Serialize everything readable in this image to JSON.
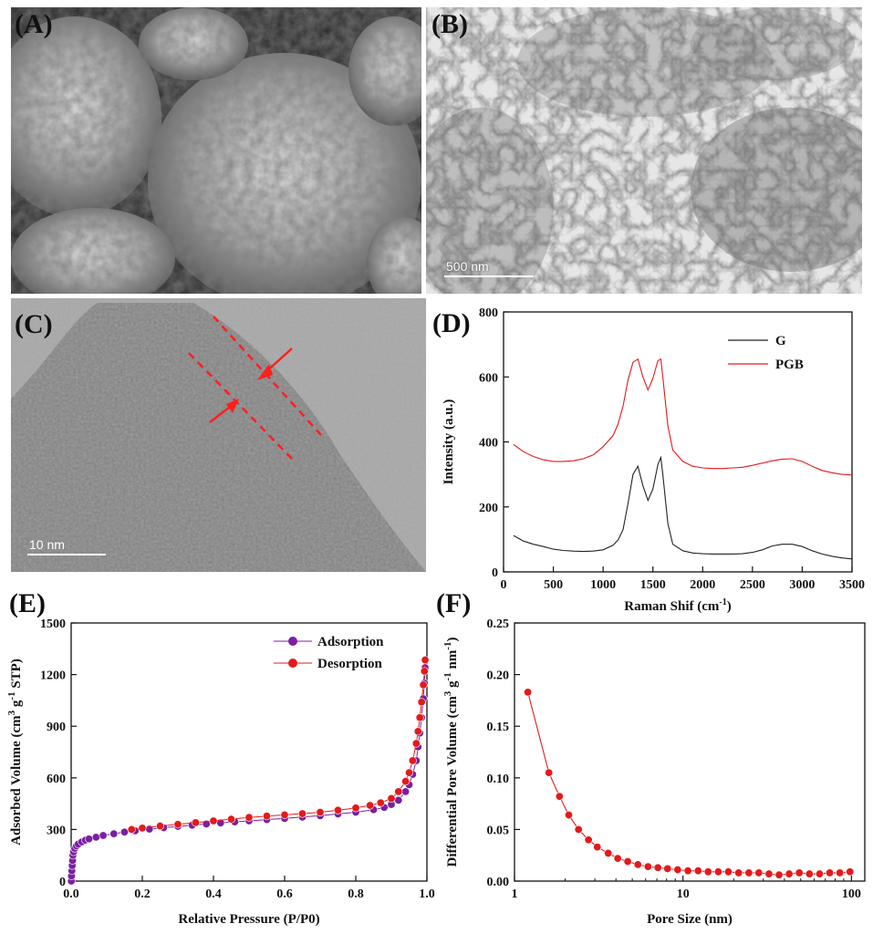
{
  "panels": {
    "A": {
      "label": "(A)"
    },
    "B": {
      "label": "(B)",
      "scalebar": "500 nm"
    },
    "C": {
      "label": "(C)",
      "scalebar": "10 nm"
    },
    "D": {
      "label": "(D)"
    },
    "E": {
      "label": "(E)"
    },
    "F": {
      "label": "(F)"
    }
  },
  "chart_data": [
    {
      "id": "D",
      "type": "line",
      "title": "",
      "xlabel": "Raman Shif (cm-1)",
      "xlabel_text": "Raman Shif (cm",
      "xlabel_sup": "-1",
      "xlabel_end": ")",
      "ylabel": "Intensity (a.u.)",
      "xlim": [
        0,
        3500
      ],
      "ylim": [
        0,
        800
      ],
      "xticks": [
        "0",
        "500",
        "1000",
        "1500",
        "2000",
        "2500",
        "3000",
        "3500"
      ],
      "yticks": [
        "0",
        "200",
        "400",
        "600",
        "800"
      ],
      "legend_position": "top-right",
      "series": [
        {
          "name": "G",
          "color": "#222222",
          "x": [
            100,
            200,
            300,
            400,
            500,
            600,
            700,
            800,
            900,
            1000,
            1100,
            1150,
            1200,
            1250,
            1300,
            1350,
            1400,
            1450,
            1500,
            1550,
            1580,
            1600,
            1650,
            1700,
            1800,
            1900,
            2000,
            2100,
            2200,
            2300,
            2400,
            2500,
            2600,
            2700,
            2800,
            2900,
            3000,
            3100,
            3200,
            3300,
            3400,
            3500
          ],
          "y": [
            112,
            95,
            85,
            78,
            70,
            66,
            64,
            63,
            64,
            68,
            82,
            98,
            130,
            210,
            300,
            325,
            265,
            220,
            255,
            330,
            352,
            300,
            150,
            85,
            65,
            58,
            56,
            55,
            55,
            55,
            56,
            60,
            68,
            80,
            85,
            85,
            78,
            65,
            55,
            48,
            43,
            40
          ]
        },
        {
          "name": "PGB",
          "color": "#e31a1c",
          "x": [
            100,
            200,
            300,
            400,
            500,
            600,
            700,
            800,
            900,
            1000,
            1100,
            1150,
            1200,
            1250,
            1300,
            1350,
            1400,
            1450,
            1500,
            1550,
            1580,
            1600,
            1650,
            1700,
            1800,
            1900,
            2000,
            2100,
            2200,
            2300,
            2400,
            2500,
            2600,
            2700,
            2800,
            2900,
            3000,
            3100,
            3200,
            3300,
            3400,
            3500
          ],
          "y": [
            392,
            370,
            355,
            345,
            340,
            340,
            342,
            348,
            360,
            385,
            420,
            455,
            510,
            590,
            645,
            655,
            600,
            560,
            595,
            650,
            655,
            600,
            450,
            375,
            340,
            325,
            320,
            318,
            318,
            320,
            322,
            328,
            335,
            342,
            347,
            348,
            340,
            325,
            312,
            305,
            300,
            298
          ]
        }
      ]
    },
    {
      "id": "E",
      "type": "scatter",
      "title": "",
      "xlabel": "Relative Pressure (P/P0)",
      "ylabel": "Adsorbed Volume (cm3 g-1 STP)",
      "ylabel_parts": [
        "Adsorbed Volume (cm",
        "3",
        " g",
        "-1",
        " STP)"
      ],
      "xlim": [
        0,
        1.0
      ],
      "ylim": [
        0,
        1500
      ],
      "xticks": [
        "0.0",
        "0.2",
        "0.4",
        "0.6",
        "0.8",
        "1.0"
      ],
      "yticks": [
        "0",
        "300",
        "600",
        "900",
        "1200",
        "1500"
      ],
      "legend_position": "top-right",
      "series": [
        {
          "name": "Adsorption",
          "color": "#7b1fa2",
          "x": [
            0.0005,
            0.001,
            0.002,
            0.003,
            0.004,
            0.005,
            0.007,
            0.01,
            0.015,
            0.02,
            0.03,
            0.04,
            0.05,
            0.07,
            0.09,
            0.12,
            0.15,
            0.18,
            0.22,
            0.26,
            0.3,
            0.34,
            0.38,
            0.42,
            0.46,
            0.5,
            0.55,
            0.6,
            0.65,
            0.7,
            0.75,
            0.8,
            0.85,
            0.88,
            0.9,
            0.92,
            0.94,
            0.95,
            0.96,
            0.97,
            0.975,
            0.98,
            0.985,
            0.99,
            0.993,
            0.995
          ],
          "y": [
            0,
            30,
            60,
            90,
            120,
            150,
            170,
            190,
            205,
            215,
            228,
            238,
            245,
            255,
            265,
            275,
            285,
            292,
            302,
            310,
            318,
            325,
            332,
            338,
            344,
            350,
            357,
            364,
            372,
            380,
            390,
            400,
            415,
            428,
            445,
            470,
            520,
            560,
            620,
            700,
            780,
            860,
            950,
            1060,
            1150,
            1240
          ]
        },
        {
          "name": "Desorption",
          "color": "#e31a1c",
          "x": [
            0.995,
            0.993,
            0.99,
            0.985,
            0.98,
            0.975,
            0.97,
            0.96,
            0.95,
            0.94,
            0.92,
            0.9,
            0.87,
            0.84,
            0.8,
            0.75,
            0.7,
            0.65,
            0.6,
            0.55,
            0.5,
            0.45,
            0.4,
            0.35,
            0.3,
            0.25,
            0.2,
            0.17
          ],
          "y": [
            1285,
            1220,
            1140,
            1040,
            950,
            870,
            800,
            700,
            630,
            580,
            520,
            480,
            455,
            440,
            425,
            412,
            400,
            392,
            385,
            378,
            370,
            360,
            350,
            340,
            330,
            320,
            308,
            300
          ]
        }
      ]
    },
    {
      "id": "F",
      "type": "line",
      "title": "",
      "xlabel": "Pore Size (nm)",
      "ylabel": "Differential Pore Volume (cm3 g-1 nm-1)",
      "ylabel_parts": [
        "Differential Pore Volume (cm",
        "3",
        " g",
        "-1",
        " nm",
        "-1",
        ")"
      ],
      "xscale": "log",
      "xlim": [
        1,
        120
      ],
      "ylim": [
        0,
        0.25
      ],
      "xticks": [
        "1",
        "10",
        "100"
      ],
      "yticks": [
        "0.00",
        "0.05",
        "0.10",
        "0.15",
        "0.20",
        "0.25"
      ],
      "series": [
        {
          "name": "",
          "color": "#e31a1c",
          "x": [
            1.2,
            1.6,
            1.85,
            2.1,
            2.4,
            2.75,
            3.1,
            3.6,
            4.1,
            4.7,
            5.4,
            6.2,
            7.1,
            8.1,
            9.3,
            10.7,
            12.3,
            14.1,
            16.2,
            18.6,
            21.4,
            24.6,
            28.2,
            32.4,
            37.2,
            42.7,
            49.0,
            56.3,
            64.7,
            74.3,
            85.3,
            98.0
          ],
          "y": [
            0.183,
            0.105,
            0.082,
            0.064,
            0.05,
            0.04,
            0.033,
            0.027,
            0.022,
            0.019,
            0.016,
            0.014,
            0.013,
            0.012,
            0.011,
            0.01,
            0.01,
            0.009,
            0.009,
            0.009,
            0.008,
            0.008,
            0.008,
            0.007,
            0.006,
            0.007,
            0.008,
            0.007,
            0.007,
            0.008,
            0.008,
            0.009
          ]
        }
      ]
    }
  ]
}
